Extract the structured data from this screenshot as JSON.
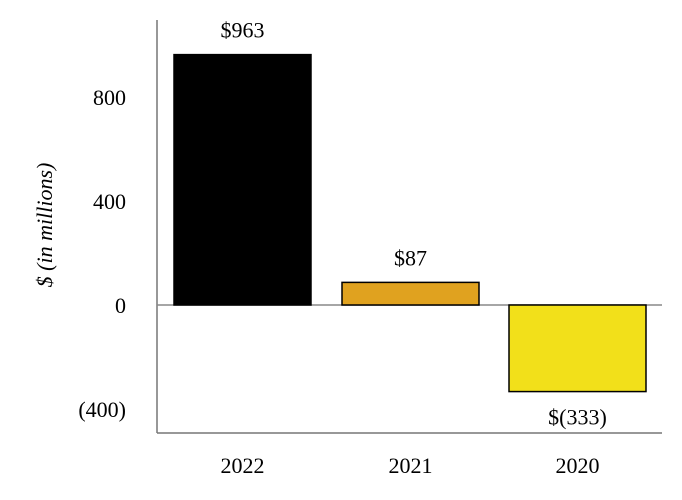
{
  "chart_data": {
    "type": "bar",
    "title": "",
    "xlabel": "",
    "ylabel": "$ (in millions)",
    "categories": [
      "2022",
      "2021",
      "2020"
    ],
    "values": [
      963,
      87,
      -333
    ],
    "data_labels": [
      "$963",
      "$87",
      "$(333)"
    ],
    "colors": [
      "#000000",
      "#E0A21F",
      "#F2E01A"
    ],
    "ylim": [
      -500,
      1100
    ],
    "yticks": [
      800,
      400,
      0,
      -400
    ],
    "ytick_labels": [
      "800",
      "400",
      "0",
      "(400)"
    ],
    "grid": false,
    "legend": "none"
  }
}
